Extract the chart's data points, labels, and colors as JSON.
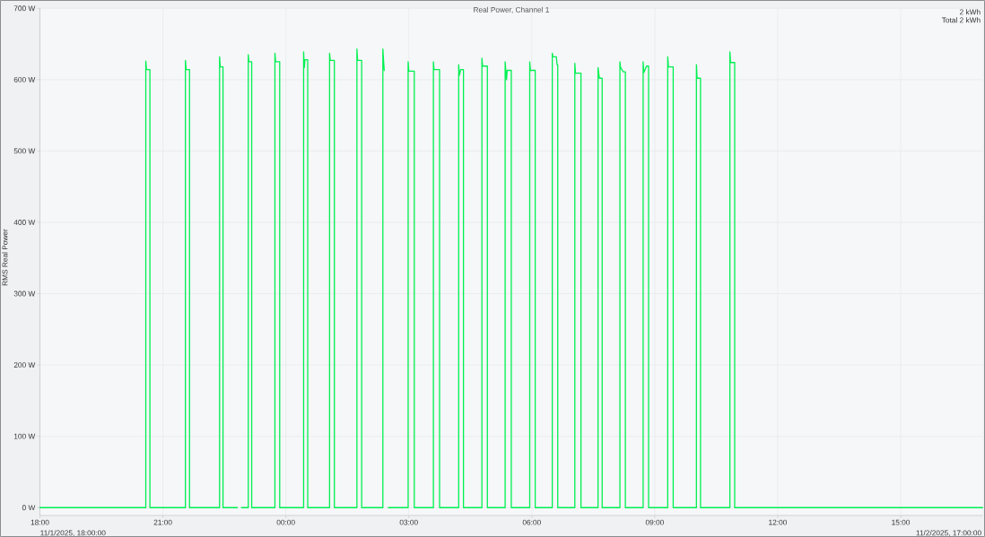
{
  "chart_data": {
    "type": "line",
    "title": "Real Power, Channel 1",
    "ylabel": "RMS Real Power",
    "annotations": [
      "2 kWh",
      "Total 2 kWh",
      "11/1/2025, 18:00:00",
      "11/2/2025, 17:00:00"
    ],
    "x": [
      "2025-11-01T18:00",
      "2025-11-01T20:35",
      "2025-11-01T20:35",
      "2025-11-01T20:36",
      "2025-11-01T20:41",
      "2025-11-01T20:41",
      "2025-11-01T21:33",
      "2025-11-01T21:33",
      "2025-11-01T21:34",
      "2025-11-01T21:39",
      "2025-11-01T21:39",
      "2025-11-01T22:23",
      "2025-11-01T22:23",
      "2025-11-01T22:24",
      "2025-11-01T22:28",
      "2025-11-01T22:28",
      "2025-11-01T22:49",
      "2025-11-01T22:52",
      "2025-11-01T22:55",
      "2025-11-01T23:05",
      "2025-11-01T23:05",
      "2025-11-01T23:06",
      "2025-11-01T23:10",
      "2025-11-01T23:10",
      "2025-11-01T23:44",
      "2025-11-01T23:44",
      "2025-11-01T23:45",
      "2025-11-01T23:51",
      "2025-11-01T23:51",
      "2025-11-02T00:26",
      "2025-11-02T00:26",
      "2025-11-02T00:27",
      "2025-11-02T00:28",
      "2025-11-02T00:32",
      "2025-11-02T00:32",
      "2025-11-02T01:04",
      "2025-11-02T01:04",
      "2025-11-02T01:05",
      "2025-11-02T01:11",
      "2025-11-02T01:11",
      "2025-11-02T01:44",
      "2025-11-02T01:44",
      "2025-11-02T01:45",
      "2025-11-02T01:51",
      "2025-11-02T01:51",
      "2025-11-02T02:22",
      "2025-11-02T02:22",
      "2025-11-02T02:23",
      "2025-11-02T02:24",
      "2025-11-02T02:27",
      "2025-11-02T02:30",
      "2025-11-02T02:59",
      "2025-11-02T02:59",
      "2025-11-02T03:00",
      "2025-11-02T03:08",
      "2025-11-02T03:08",
      "2025-11-02T03:36",
      "2025-11-02T03:36",
      "2025-11-02T03:37",
      "2025-11-02T03:45",
      "2025-11-02T03:45",
      "2025-11-02T04:13",
      "2025-11-02T04:13",
      "2025-11-02T04:14",
      "2025-11-02T04:16",
      "2025-11-02T04:20",
      "2025-11-02T04:20",
      "2025-11-02T04:47",
      "2025-11-02T04:47",
      "2025-11-02T04:48",
      "2025-11-02T04:55",
      "2025-11-02T04:55",
      "2025-11-02T05:21",
      "2025-11-02T05:21",
      "2025-11-02T05:22",
      "2025-11-02T05:23",
      "2025-11-02T05:24",
      "2025-11-02T05:30",
      "2025-11-02T05:30",
      "2025-11-02T05:57",
      "2025-11-02T05:57",
      "2025-11-02T05:58",
      "2025-11-02T06:05",
      "2025-11-02T06:05",
      "2025-11-02T06:30",
      "2025-11-02T06:30",
      "2025-11-02T06:31",
      "2025-11-02T06:36",
      "2025-11-02T06:37",
      "2025-11-02T06:38",
      "2025-11-02T06:38",
      "2025-11-02T07:03",
      "2025-11-02T07:03",
      "2025-11-02T07:04",
      "2025-11-02T07:12",
      "2025-11-02T07:12",
      "2025-11-02T07:37",
      "2025-11-02T07:37",
      "2025-11-02T07:38",
      "2025-11-02T07:39",
      "2025-11-02T07:43",
      "2025-11-02T07:43",
      "2025-11-02T08:09",
      "2025-11-02T08:09",
      "2025-11-02T08:10",
      "2025-11-02T08:14",
      "2025-11-02T08:17",
      "2025-11-02T08:17",
      "2025-11-02T08:43",
      "2025-11-02T08:43",
      "2025-11-02T08:44",
      "2025-11-02T08:48",
      "2025-11-02T08:51",
      "2025-11-02T08:51",
      "2025-11-02T09:19",
      "2025-11-02T09:19",
      "2025-11-02T09:20",
      "2025-11-02T09:27",
      "2025-11-02T09:27",
      "2025-11-02T10:01",
      "2025-11-02T10:01",
      "2025-11-02T10:02",
      "2025-11-02T10:07",
      "2025-11-02T10:07",
      "2025-11-02T10:50",
      "2025-11-02T10:50",
      "2025-11-02T10:51",
      "2025-11-02T10:57",
      "2025-11-02T10:57",
      "2025-11-02T17:00"
    ],
    "series": [
      {
        "color": "#00f050",
        "values": [
          0,
          0,
          626,
          614,
          614,
          0,
          0,
          627,
          614,
          614,
          0,
          0,
          632,
          618,
          618,
          0,
          0,
          null,
          0,
          0,
          635,
          625,
          625,
          0,
          0,
          637,
          625,
          625,
          0,
          0,
          639,
          617,
          628,
          628,
          0,
          0,
          637,
          627,
          627,
          0,
          0,
          643,
          627,
          627,
          0,
          0,
          643,
          627,
          613,
          null,
          0,
          0,
          625,
          612,
          612,
          0,
          0,
          625,
          614,
          614,
          0,
          0,
          621,
          606,
          614,
          614,
          0,
          0,
          630,
          619,
          619,
          0,
          0,
          625,
          613,
          600,
          613,
          613,
          0,
          0,
          625,
          613,
          613,
          0,
          0,
          637,
          632,
          632,
          621,
          621,
          0,
          0,
          623,
          609,
          609,
          0,
          0,
          617,
          609,
          602,
          602,
          0,
          0,
          625,
          617,
          611,
          611,
          0,
          0,
          625,
          610,
          619,
          619,
          0,
          0,
          632,
          618,
          618,
          0,
          0,
          621,
          602,
          602,
          0,
          0,
          639,
          624,
          624,
          0,
          0
        ]
      }
    ],
    "xlim": [
      "2025-11-01T18:00",
      "2025-11-02T17:00"
    ],
    "xticks": [
      {
        "value": "2025-11-01T18:00",
        "label": "18:00"
      },
      {
        "value": "2025-11-01T21:00",
        "label": "21:00"
      },
      {
        "value": "2025-11-02T00:00",
        "label": "00:00"
      },
      {
        "value": "2025-11-02T03:00",
        "label": "03:00"
      },
      {
        "value": "2025-11-02T06:00",
        "label": "06:00"
      },
      {
        "value": "2025-11-02T09:00",
        "label": "09:00"
      },
      {
        "value": "2025-11-02T12:00",
        "label": "12:00"
      },
      {
        "value": "2025-11-02T15:00",
        "label": "15:00"
      }
    ],
    "ylim": [
      -11,
      700
    ],
    "yticks": [
      {
        "value": 0,
        "label": "0 W"
      },
      {
        "value": 100,
        "label": "100 W"
      },
      {
        "value": 200,
        "label": "200 W"
      },
      {
        "value": 300,
        "label": "300 W"
      },
      {
        "value": 400,
        "label": "400 W"
      },
      {
        "value": 500,
        "label": "500 W"
      },
      {
        "value": 600,
        "label": "600 W"
      },
      {
        "value": 700,
        "label": "700 W"
      }
    ],
    "grid": true,
    "marker": "none"
  }
}
